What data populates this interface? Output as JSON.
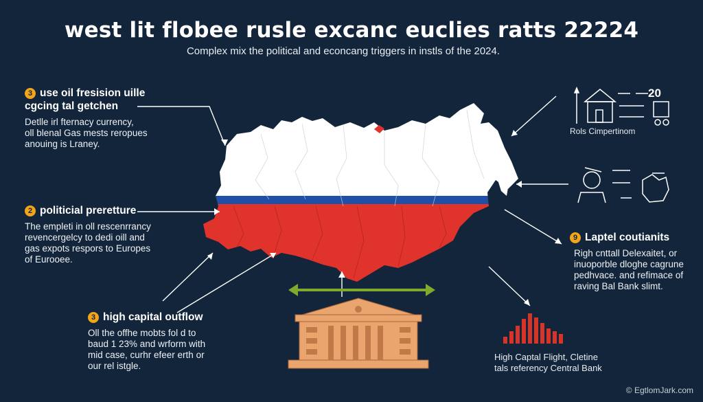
{
  "title": "west lit flobee rusle excanc euclies ratts 22224",
  "subtitle": "Complex mix the political and econcang triggers in instls of the 2024.",
  "blocks": [
    {
      "badge": "3",
      "heading_line1": "use oil fresision uille",
      "heading_line2": "cgcing tal getchen",
      "body_lines": [
        "Detlle irl fternacy currency,",
        "oll blenal Gas mests reropues",
        "anouing is Lraney."
      ]
    },
    {
      "badge": "2",
      "heading_line1": "politicial preretture",
      "body_lines": [
        "The empleti in oll rescenrrancy",
        "revencergelcy to dedi oill and",
        "gas expots respors to Europes",
        "of Eurooee."
      ]
    },
    {
      "badge": "3",
      "heading_line1": "high capital outflow",
      "body_lines": [
        "Oll the offhe mobts fol d to",
        "baud 1 23% and wrform with",
        "mid case, curhr efeer erth or",
        "our rel istgle."
      ]
    },
    {
      "badge": "9",
      "heading_line1": "Laptel coutianits",
      "body_lines": [
        "Righ cnttall Delexaitet, or",
        "inuoporble dloghe cagrune",
        "pedhvace. and refimace of",
        "raving Bal Bank slimt."
      ]
    }
  ],
  "icon_labels": {
    "top_right_number": "20",
    "top_right_caption": "Rols Cimpertinom",
    "bottom_right_line1": "High Captal Flight, Cletine",
    "bottom_right_line2": "tals referency Central Bank"
  },
  "copyright": "© EgtlomJark.com",
  "colors": {
    "background": "#13253a",
    "flag_white": "#ffffff",
    "flag_blue": "#1f4fa6",
    "flag_red": "#e0332b",
    "badge": "#f2a51b",
    "arrow_green": "#7cab2e",
    "building": "#e9a56d",
    "bars": "#d63428"
  }
}
